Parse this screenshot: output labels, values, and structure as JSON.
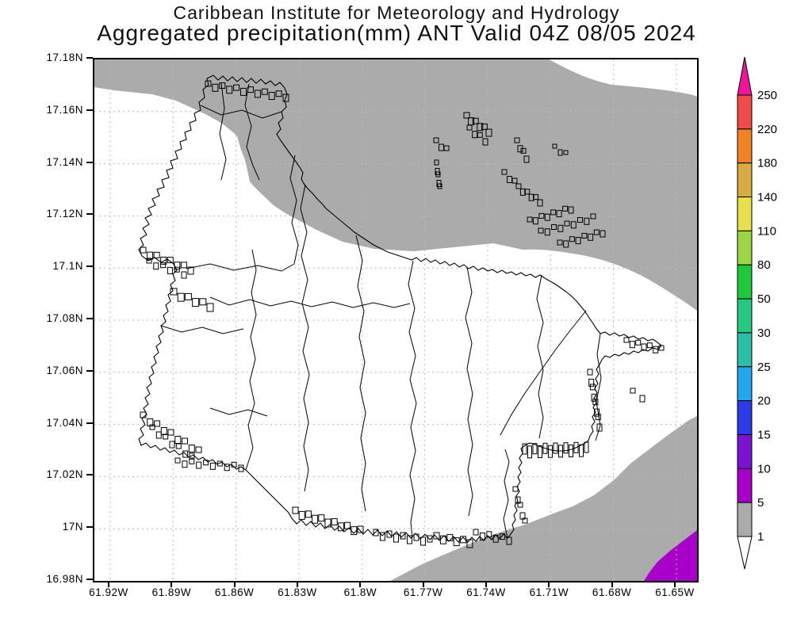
{
  "header": {
    "line1": "Caribbean Institute for Meteorology and Hydrology",
    "line2": "Aggregated precipitation(mm) ANT Valid 04Z 08/05 2024"
  },
  "map": {
    "lat_ticks": [
      "17.18N",
      "17.16N",
      "17.14N",
      "17.12N",
      "17.1N",
      "17.08N",
      "17.06N",
      "17.04N",
      "17.02N",
      "17N",
      "16.98N"
    ],
    "lon_ticks": [
      "61.92W",
      "61.89W",
      "61.86W",
      "61.83W",
      "61.8W",
      "61.77W",
      "61.74W",
      "61.71W",
      "61.68W",
      "61.65W"
    ],
    "grid_color": "#bbbbbb",
    "outline_color": "#000000",
    "shading": {
      "precip_1_5_color": "#ababab",
      "precip_5_10_color": "#a800c8"
    }
  },
  "colorbar": {
    "labels": [
      "250",
      "220",
      "180",
      "140",
      "110",
      "80",
      "50",
      "30",
      "25",
      "20",
      "15",
      "10",
      "5",
      "1"
    ],
    "over_color": "#f0149b",
    "under_color": "#ffffff",
    "segments": [
      "#f04b4b",
      "#f08228",
      "#d8ac44",
      "#e6e04e",
      "#9cd648",
      "#22c83c",
      "#28c882",
      "#2bbfa5",
      "#25a5eb",
      "#2b3be6",
      "#7a14d2",
      "#a800c8",
      "#ababab"
    ]
  }
}
